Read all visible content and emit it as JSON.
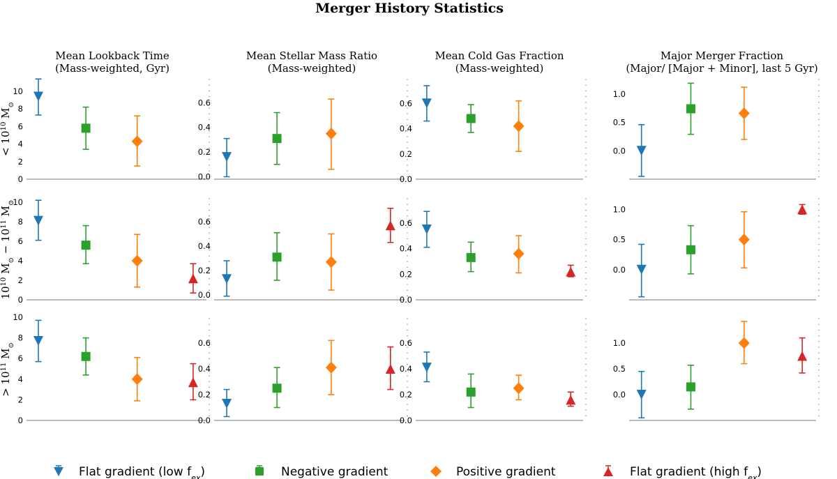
{
  "suptitle": "Merger History Statistics",
  "columns": [
    {
      "title_line1": "Mean Lookback Time",
      "title_line2": "(Mass-weighted, Gyr)"
    },
    {
      "title_line1": "Mean Stellar Mass Ratio",
      "title_line2": "(Mass-weighted)"
    },
    {
      "title_line1": "Mean Cold Gas Fraction",
      "title_line2": "(Mass-weighted)"
    },
    {
      "title_line1": "Major Merger Fraction",
      "title_line2": "(Major/ [Major + Minor], last 5 Gyr)"
    }
  ],
  "rows": [
    {
      "label": "< 10^10 M_⊙"
    },
    {
      "label": "10^10 M_⊙ − 10^11 M_⊙"
    },
    {
      "label": "> 10^11 M_⊙"
    }
  ],
  "legend": [
    {
      "label": "Flat gradient (low f_ex)",
      "color": "#1f77b4",
      "marker": "triangle-down"
    },
    {
      "label": "Negative gradient",
      "color": "#2ca02c",
      "marker": "square"
    },
    {
      "label": "Positive gradient",
      "color": "#ff7f0e",
      "marker": "diamond"
    },
    {
      "label": "Flat gradient (high f_ex)",
      "color": "#d62728",
      "marker": "triangle-up"
    }
  ],
  "chart_data": [
    {
      "type": "errorbar",
      "row": 0,
      "col": 0,
      "ylim": [
        0,
        11.5
      ],
      "yticks": [
        "0",
        "2",
        "4",
        "6",
        "8",
        "10"
      ],
      "points": [
        {
          "group": 0,
          "y": 9.4,
          "lo": 7.3,
          "hi": 11.4
        },
        {
          "group": 1,
          "y": 5.8,
          "lo": 3.4,
          "hi": 8.2
        },
        {
          "group": 2,
          "y": 4.3,
          "lo": 1.5,
          "hi": 7.2
        }
      ]
    },
    {
      "type": "errorbar",
      "row": 0,
      "col": 1,
      "ylim": [
        -0.02,
        0.8
      ],
      "yticks": [
        "0.0",
        "0.2",
        "0.4",
        "0.6"
      ],
      "points": [
        {
          "group": 0,
          "y": 0.16,
          "lo": 0.0,
          "hi": 0.31
        },
        {
          "group": 1,
          "y": 0.31,
          "lo": 0.1,
          "hi": 0.52
        },
        {
          "group": 2,
          "y": 0.35,
          "lo": 0.06,
          "hi": 0.63
        }
      ]
    },
    {
      "type": "errorbar",
      "row": 0,
      "col": 2,
      "ylim": [
        0,
        0.8
      ],
      "yticks": [
        "0.0",
        "0.2",
        "0.4",
        "0.6"
      ],
      "points": [
        {
          "group": 0,
          "y": 0.6,
          "lo": 0.46,
          "hi": 0.74
        },
        {
          "group": 1,
          "y": 0.48,
          "lo": 0.37,
          "hi": 0.59
        },
        {
          "group": 2,
          "y": 0.42,
          "lo": 0.22,
          "hi": 0.62
        }
      ]
    },
    {
      "type": "errorbar",
      "row": 0,
      "col": 3,
      "ylim": [
        -0.5,
        1.28
      ],
      "yticks": [
        "0.0",
        "0.5",
        "1.0"
      ],
      "points": [
        {
          "group": 0,
          "y": 0.0,
          "lo": -0.45,
          "hi": 0.46
        },
        {
          "group": 1,
          "y": 0.74,
          "lo": 0.29,
          "hi": 1.19
        },
        {
          "group": 2,
          "y": 0.66,
          "lo": 0.2,
          "hi": 1.12
        }
      ]
    },
    {
      "type": "errorbar",
      "row": 1,
      "col": 0,
      "ylim": [
        0,
        10.5
      ],
      "yticks": [
        "0",
        "2",
        "4",
        "6",
        "8",
        "10"
      ],
      "points": [
        {
          "group": 0,
          "y": 8.1,
          "lo": 6.1,
          "hi": 10.2
        },
        {
          "group": 1,
          "y": 5.6,
          "lo": 3.7,
          "hi": 7.6
        },
        {
          "group": 2,
          "y": 4.0,
          "lo": 1.3,
          "hi": 6.7
        },
        {
          "group": 3,
          "y": 2.2,
          "lo": 0.7,
          "hi": 3.7
        }
      ]
    },
    {
      "type": "errorbar",
      "row": 1,
      "col": 1,
      "ylim": [
        -0.04,
        0.8
      ],
      "yticks": [
        "0.0",
        "0.2",
        "0.4",
        "0.6"
      ],
      "points": [
        {
          "group": 0,
          "y": 0.13,
          "lo": -0.01,
          "hi": 0.28
        },
        {
          "group": 1,
          "y": 0.31,
          "lo": 0.12,
          "hi": 0.51
        },
        {
          "group": 2,
          "y": 0.27,
          "lo": 0.04,
          "hi": 0.5
        },
        {
          "group": 3,
          "y": 0.57,
          "lo": 0.43,
          "hi": 0.71
        }
      ]
    },
    {
      "type": "errorbar",
      "row": 1,
      "col": 2,
      "ylim": [
        0,
        0.8
      ],
      "yticks": [
        "0.0",
        "0.2",
        "0.4",
        "0.6"
      ],
      "points": [
        {
          "group": 0,
          "y": 0.55,
          "lo": 0.41,
          "hi": 0.69
        },
        {
          "group": 1,
          "y": 0.33,
          "lo": 0.22,
          "hi": 0.45
        },
        {
          "group": 2,
          "y": 0.36,
          "lo": 0.21,
          "hi": 0.5
        },
        {
          "group": 3,
          "y": 0.22,
          "lo": 0.18,
          "hi": 0.27
        }
      ]
    },
    {
      "type": "errorbar",
      "row": 1,
      "col": 3,
      "ylim": [
        -0.5,
        1.2
      ],
      "yticks": [
        "0.0",
        "0.5",
        "1.0"
      ],
      "points": [
        {
          "group": 0,
          "y": 0.0,
          "lo": -0.45,
          "hi": 0.42
        },
        {
          "group": 1,
          "y": 0.33,
          "lo": -0.07,
          "hi": 0.73
        },
        {
          "group": 2,
          "y": 0.5,
          "lo": 0.03,
          "hi": 0.96
        },
        {
          "group": 3,
          "y": 1.0,
          "lo": 0.92,
          "hi": 1.08
        }
      ]
    },
    {
      "type": "errorbar",
      "row": 2,
      "col": 0,
      "ylim": [
        0,
        10
      ],
      "yticks": [
        "0",
        "2",
        "4",
        "6",
        "8",
        "10"
      ],
      "points": [
        {
          "group": 0,
          "y": 7.7,
          "lo": 5.7,
          "hi": 9.7
        },
        {
          "group": 1,
          "y": 6.2,
          "lo": 4.4,
          "hi": 8.0
        },
        {
          "group": 2,
          "y": 4.0,
          "lo": 1.9,
          "hi": 6.1
        },
        {
          "group": 3,
          "y": 3.7,
          "lo": 2.0,
          "hi": 5.5
        }
      ]
    },
    {
      "type": "errorbar",
      "row": 2,
      "col": 1,
      "ylim": [
        0,
        0.8
      ],
      "yticks": [
        "0.0",
        "0.2",
        "0.4",
        "0.6"
      ],
      "points": [
        {
          "group": 0,
          "y": 0.13,
          "lo": 0.03,
          "hi": 0.24
        },
        {
          "group": 1,
          "y": 0.25,
          "lo": 0.1,
          "hi": 0.41
        },
        {
          "group": 2,
          "y": 0.41,
          "lo": 0.2,
          "hi": 0.62
        },
        {
          "group": 3,
          "y": 0.4,
          "lo": 0.24,
          "hi": 0.57
        }
      ]
    },
    {
      "type": "errorbar",
      "row": 2,
      "col": 2,
      "ylim": [
        0,
        0.8
      ],
      "yticks": [
        "0.0",
        "0.2",
        "0.4",
        "0.6"
      ],
      "points": [
        {
          "group": 0,
          "y": 0.41,
          "lo": 0.3,
          "hi": 0.53
        },
        {
          "group": 1,
          "y": 0.22,
          "lo": 0.1,
          "hi": 0.36
        },
        {
          "group": 2,
          "y": 0.25,
          "lo": 0.16,
          "hi": 0.35
        },
        {
          "group": 3,
          "y": 0.16,
          "lo": 0.11,
          "hi": 0.22
        }
      ]
    },
    {
      "type": "errorbar",
      "row": 2,
      "col": 3,
      "ylim": [
        -0.5,
        1.5
      ],
      "yticks": [
        "0.0",
        "0.5",
        "1.0"
      ],
      "points": [
        {
          "group": 0,
          "y": 0.0,
          "lo": -0.45,
          "hi": 0.45
        },
        {
          "group": 1,
          "y": 0.15,
          "lo": -0.28,
          "hi": 0.57
        },
        {
          "group": 2,
          "y": 1.0,
          "lo": 0.6,
          "hi": 1.42
        },
        {
          "group": 3,
          "y": 0.75,
          "lo": 0.42,
          "hi": 1.1
        }
      ]
    }
  ]
}
